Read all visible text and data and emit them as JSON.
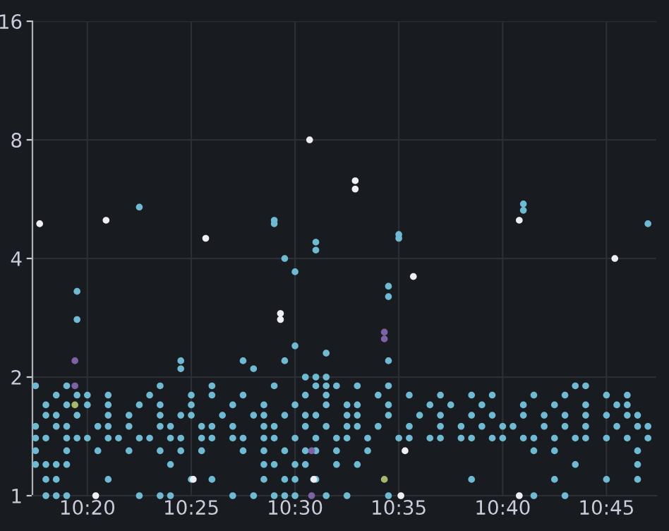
{
  "chart_data": {
    "type": "scatter",
    "log": true,
    "grid": true,
    "marker": "circle",
    "xlim": [
      10.2892,
      10.79
    ],
    "ylim": [
      1,
      16
    ],
    "xticks": [
      {
        "value": 10.3333,
        "label": "10:20"
      },
      {
        "value": 10.4167,
        "label": "10:25"
      },
      {
        "value": 10.5,
        "label": "10:30"
      },
      {
        "value": 10.5833,
        "label": "10:35"
      },
      {
        "value": 10.6667,
        "label": "10:40"
      },
      {
        "value": 10.75,
        "label": "10:45"
      }
    ],
    "yticks": [
      1,
      2,
      4,
      8,
      16
    ],
    "series": [
      {
        "color": "#6fb9d3",
        "x": [
          10.2917,
          10.3,
          10.3167,
          10.325,
          10.3333,
          10.35,
          10.3583,
          10.375,
          10.3833,
          10.4,
          10.4083,
          10.425,
          10.4333,
          10.45,
          10.4583,
          10.475,
          10.4833,
          10.5,
          10.5167,
          10.5333,
          10.5417,
          10.5583,
          10.5833,
          10.5917,
          10.6083,
          10.6167,
          10.6333,
          10.6417,
          10.6583,
          10.6667,
          10.6833,
          10.6917,
          10.7083,
          10.725,
          10.7333,
          10.75,
          10.7667,
          10.7833,
          10.2917,
          10.3083,
          10.3167,
          10.3417,
          10.35,
          10.3667,
          10.3917,
          10.4,
          10.425,
          10.4333,
          10.45,
          10.475,
          10.4833,
          10.5083,
          10.525,
          10.5417,
          10.55,
          10.5667,
          10.5917,
          10.6167,
          10.6333,
          10.65,
          10.6667,
          10.675,
          10.7,
          10.7167,
          10.7333,
          10.7583,
          10.775,
          10.7833,
          10.3,
          10.3083,
          10.325,
          10.35,
          10.3667,
          10.3917,
          10.4083,
          10.4167,
          10.4417,
          10.4667,
          10.475,
          10.4917,
          10.5083,
          10.5167,
          10.5417,
          10.55,
          10.575,
          10.6,
          10.6167,
          10.6417,
          10.6583,
          10.6833,
          10.7,
          10.7167,
          10.7333,
          10.75,
          10.7667,
          10.775,
          10.3,
          10.3167,
          10.3333,
          10.35,
          10.375,
          10.3917,
          10.4167,
          10.45,
          10.475,
          10.5,
          10.525,
          10.5417,
          10.55,
          10.575,
          10.6083,
          10.625,
          10.65,
          10.6833,
          10.7083,
          10.7333,
          10.7583,
          10.7667,
          10.3083,
          10.325,
          10.3333,
          10.35,
          10.3833,
          10.4167,
          10.4333,
          10.4583,
          10.5083,
          10.525,
          10.5667,
          10.5917,
          10.6167,
          10.6417,
          10.6583,
          10.6917,
          10.7167,
          10.75,
          10.7667,
          10.2917,
          10.3167,
          10.3917,
          10.4333,
          10.4833,
          10.5167,
          10.525,
          10.5333,
          10.55,
          10.575,
          10.725,
          10.7333,
          10.5083,
          10.5167,
          10.525,
          10.2917,
          10.3167,
          10.3417,
          10.3667,
          10.3917,
          10.4083,
          10.425,
          10.4583,
          10.475,
          10.4917,
          10.5083,
          10.5167,
          10.5333,
          10.5583,
          10.6917,
          10.7083,
          10.775,
          10.2917,
          10.3,
          10.3083,
          10.3167,
          10.4,
          10.475,
          10.4833,
          10.5,
          10.5083,
          10.5333,
          10.55,
          10.725,
          10.775,
          10.3,
          10.3083,
          10.35,
          10.4167,
          10.4333,
          10.475,
          10.4917,
          10.5,
          10.5167,
          10.6417,
          10.7083,
          10.75,
          10.775,
          10.3,
          10.3083,
          10.3167,
          10.375,
          10.3917,
          10.4,
          10.45,
          10.4667,
          10.4833,
          10.4917,
          10.5,
          10.525,
          10.5417,
          10.575,
          10.6917,
          10.7167,
          10.325,
          10.325,
          10.4083,
          10.4083,
          10.4583,
          10.4667,
          10.4917,
          10.5,
          10.4917,
          10.5,
          10.525,
          10.575,
          10.575,
          10.575,
          10.375,
          10.4833,
          10.4833,
          10.5167,
          10.5167,
          10.5833,
          10.5833,
          10.6833,
          10.6833,
          10.7833
        ],
        "values": [
          1.4,
          1.4,
          1.4,
          1.4,
          1.4,
          1.4,
          1.4,
          1.4,
          1.4,
          1.4,
          1.4,
          1.4,
          1.4,
          1.4,
          1.4,
          1.4,
          1.4,
          1.4,
          1.4,
          1.4,
          1.4,
          1.4,
          1.4,
          1.4,
          1.4,
          1.4,
          1.4,
          1.4,
          1.4,
          1.4,
          1.4,
          1.4,
          1.4,
          1.4,
          1.4,
          1.4,
          1.4,
          1.4,
          1.5,
          1.5,
          1.5,
          1.5,
          1.5,
          1.5,
          1.5,
          1.5,
          1.5,
          1.5,
          1.5,
          1.5,
          1.5,
          1.5,
          1.5,
          1.5,
          1.5,
          1.5,
          1.5,
          1.5,
          1.5,
          1.5,
          1.5,
          1.5,
          1.5,
          1.5,
          1.5,
          1.5,
          1.5,
          1.5,
          1.6,
          1.6,
          1.6,
          1.6,
          1.6,
          1.6,
          1.6,
          1.6,
          1.6,
          1.6,
          1.6,
          1.6,
          1.6,
          1.6,
          1.6,
          1.6,
          1.6,
          1.6,
          1.6,
          1.6,
          1.6,
          1.6,
          1.6,
          1.6,
          1.6,
          1.6,
          1.6,
          1.6,
          1.7,
          1.7,
          1.7,
          1.7,
          1.7,
          1.7,
          1.7,
          1.7,
          1.7,
          1.7,
          1.7,
          1.7,
          1.7,
          1.7,
          1.7,
          1.7,
          1.7,
          1.7,
          1.7,
          1.7,
          1.7,
          1.7,
          1.8,
          1.8,
          1.8,
          1.8,
          1.8,
          1.8,
          1.8,
          1.8,
          1.8,
          1.8,
          1.8,
          1.8,
          1.8,
          1.8,
          1.8,
          1.8,
          1.8,
          1.8,
          1.8,
          1.9,
          1.9,
          1.9,
          1.9,
          1.9,
          1.9,
          1.9,
          1.9,
          1.9,
          1.9,
          1.9,
          1.9,
          2.0,
          2.0,
          2.0,
          1.3,
          1.3,
          1.3,
          1.3,
          1.3,
          1.3,
          1.3,
          1.3,
          1.3,
          1.3,
          1.3,
          1.3,
          1.3,
          1.3,
          1.3,
          1.3,
          1.3,
          1.2,
          1.2,
          1.2,
          1.2,
          1.2,
          1.2,
          1.2,
          1.2,
          1.2,
          1.2,
          1.2,
          1.2,
          1.2,
          1.1,
          1.1,
          1.1,
          1.1,
          1.1,
          1.1,
          1.1,
          1.1,
          1.1,
          1.1,
          1.1,
          1.1,
          1.1,
          1.0,
          1.0,
          1.0,
          1.0,
          1.0,
          1.0,
          1.0,
          1.0,
          1.0,
          1.0,
          1.0,
          1.0,
          1.0,
          1.0,
          1.0,
          1.0,
          3.3,
          2.8,
          2.2,
          2.1,
          2.2,
          2.1,
          2.2,
          2.4,
          4.0,
          3.7,
          2.3,
          3.4,
          3.2,
          2.2,
          5.4,
          5.0,
          4.9,
          4.4,
          4.2,
          4.6,
          4.5,
          5.5,
          5.3,
          4.9
        ]
      },
      {
        "color": "#eeeef4",
        "x": [
          10.295,
          10.3483,
          10.4283,
          10.5117,
          10.5483,
          10.5483,
          10.595,
          10.68,
          10.7567,
          10.34,
          10.4183,
          10.515,
          10.5883,
          10.585,
          10.68,
          10.4883,
          10.4883
        ],
        "values": [
          4.9,
          5.0,
          4.5,
          8.0,
          6.3,
          6.0,
          3.6,
          5.0,
          4.0,
          1.0,
          1.1,
          1.1,
          1.3,
          1.0,
          1.0,
          2.9,
          2.8
        ]
      },
      {
        "color": "#7d62a6",
        "x": [
          10.3233,
          10.3233,
          10.5133,
          10.5133,
          10.5717,
          10.5717
        ],
        "values": [
          2.2,
          1.9,
          1.3,
          1.0,
          2.6,
          2.5
        ]
      },
      {
        "color": "#a6b86a",
        "x": [
          10.3233,
          10.5717
        ],
        "values": [
          1.7,
          1.1
        ]
      }
    ]
  }
}
